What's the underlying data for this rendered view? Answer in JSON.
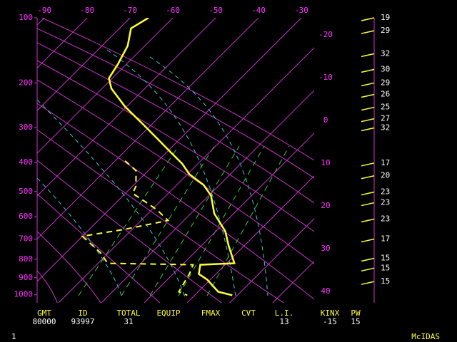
{
  "chart_data": {
    "type": "skewt",
    "ylim": [
      100,
      1050
    ],
    "yticks": [
      100,
      200,
      300,
      400,
      500,
      600,
      700,
      800,
      900,
      1000
    ],
    "xlim": [
      -91.7,
      -27
    ],
    "xticks": [
      -90,
      -80,
      -70,
      -60,
      -50,
      -40,
      -30,
      -20,
      -10,
      0,
      10,
      20,
      30,
      40
    ],
    "grid": true,
    "grid_color": "#cc33cc",
    "series": [
      {
        "color": "#ffff33",
        "dashed": false,
        "pressure": [
          100,
          113,
          137,
          166,
          191,
          211,
          250,
          292,
          330,
          371,
          404,
          439,
          476,
          515,
          587,
          664,
          731,
          821,
          829,
          879,
          911,
          982,
          1003
        ],
        "values": [
          -65.7,
          -67.3,
          -64,
          -62,
          -60.8,
          -57.8,
          -50.3,
          -42,
          -35.3,
          -28.7,
          -23.7,
          -19.5,
          -13.7,
          -9.5,
          -4.5,
          2.2,
          6.3,
          11.8,
          4.2,
          6,
          9.3,
          14.7,
          18.8
        ]
      },
      {
        "color": "#ffff33",
        "dashed": true,
        "pressure": [
          395,
          427,
          481,
          507,
          543,
          572,
          616,
          655,
          687,
          766,
          821,
          829,
          879,
          982,
          1003
        ],
        "values": [
          -37.7,
          -32.8,
          -29.2,
          -28.3,
          -22.8,
          -18.7,
          -13.7,
          -21.7,
          -30,
          -22,
          -17.8,
          2.5,
          3.8,
          5.5,
          8.3
        ]
      }
    ],
    "winds": {
      "color": "#ffff33",
      "pressure": [
        100,
        116,
        149,
        175,
        200,
        223,
        251,
        278,
        301,
        402,
        444,
        502,
        543,
        610,
        700,
        795,
        847,
        922
      ],
      "values": [
        19,
        29,
        32,
        30,
        29,
        26,
        25,
        27,
        32,
        17,
        20,
        23,
        23,
        23,
        17,
        15,
        15,
        15
      ]
    }
  },
  "indices": [
    {
      "label": "GMT",
      "value": 80000
    },
    {
      "label": "ID",
      "value": 93997
    },
    {
      "label": "TOTAL",
      "value": 31
    },
    {
      "label": "EQUIP"
    },
    {
      "label": "FMAX"
    },
    {
      "label": "CVT"
    },
    {
      "label": "L.I.",
      "value": 13
    },
    {
      "label": "KINX",
      "value": -15
    },
    {
      "label": "PW",
      "value": 15
    }
  ],
  "footer": {
    "page": "1",
    "brand": "McIDAS"
  }
}
